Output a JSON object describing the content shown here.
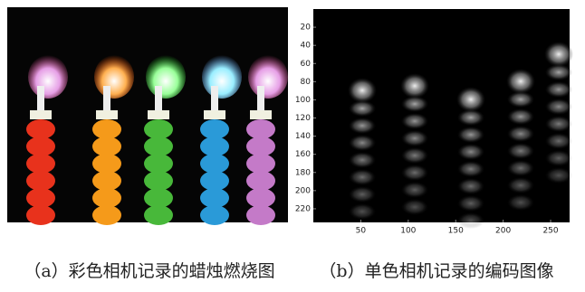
{
  "figure": {
    "panel_a": {
      "caption": "（a）彩色相机记录的蜡烛燃烧图"
    },
    "panel_b": {
      "caption": "（b）单色相机记录的编码图像",
      "xlim": [
        0,
        270
      ],
      "ylim": [
        0,
        235
      ],
      "xticks": [
        50,
        100,
        150,
        200,
        250
      ],
      "yticks": [
        20,
        40,
        60,
        80,
        100,
        120,
        140,
        160,
        180,
        200,
        220
      ]
    }
  }
}
